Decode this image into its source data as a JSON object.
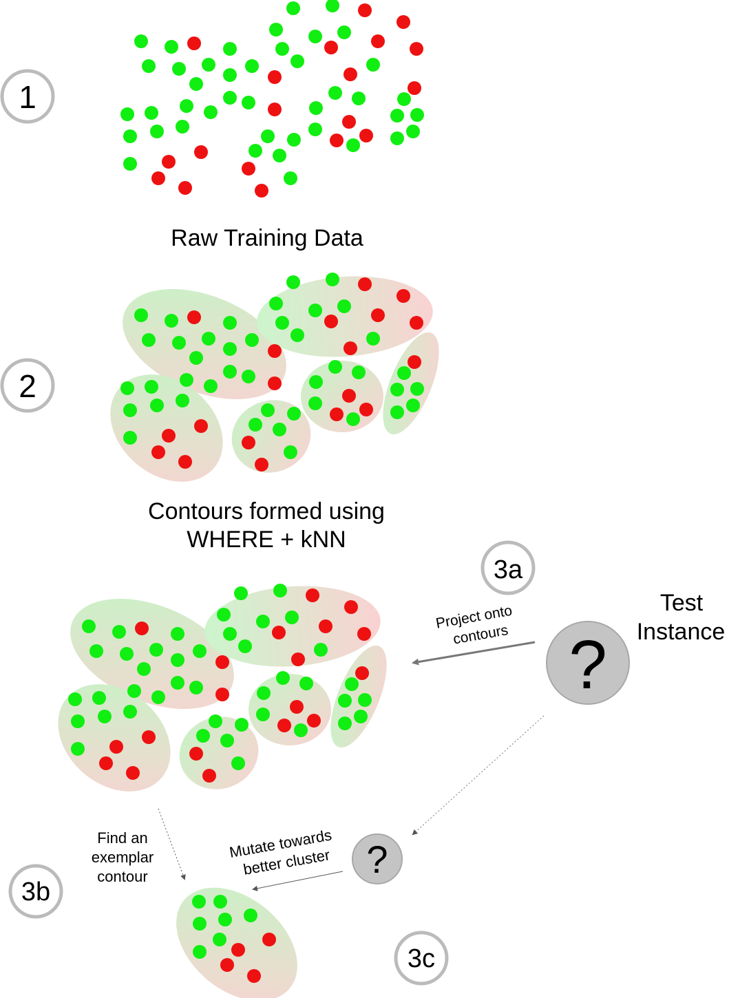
{
  "colors": {
    "green_point": "#11ee11",
    "red_point": "#ee1111",
    "step_circle_stroke": "#bbbbbb",
    "test_instance_fill": "#c4c4c4",
    "arrow": "#777777"
  },
  "steps": {
    "s1": "1",
    "s2": "2",
    "s3a": "3a",
    "s3b": "3b",
    "s3c": "3c"
  },
  "captions": {
    "raw_training_data": "Raw Training Data",
    "contours_line1": "Contours formed using",
    "contours_line2": "WHERE + kNN",
    "project_line1": "Project onto",
    "project_line2": "contours",
    "test_line1": "Test",
    "test_line2": "Instance",
    "find_line1": "Find an",
    "find_line2": "exemplar",
    "find_line3": "contour",
    "mutate_line1": "Mutate towards",
    "mutate_line2": "better cluster"
  },
  "test_instance_symbol": "?",
  "mutated_instance_symbol": "?"
}
